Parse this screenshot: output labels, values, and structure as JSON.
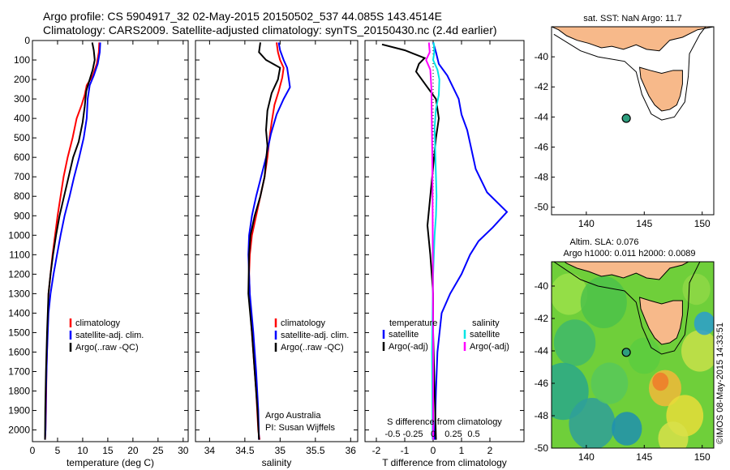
{
  "title": {
    "line1": "Argo profile: CS 5904917_32 02-May-2015 20150502_537 44.085S 143.4514E",
    "line2": "Climatology: CARS2009. Satellite-adjusted climatology: synTS_20150430.nc (2.4d earlier)"
  },
  "colors": {
    "climatology": "#ff0000",
    "satellite": "#0000ff",
    "argo": "#000000",
    "temp_diff_sat": "#0000ff",
    "temp_diff_argo": "#000000",
    "sal_diff_sat": "#00e5e5",
    "sal_diff_argo": "#ff00ff",
    "land": "#f7b98a",
    "marker": "#2e9e7e"
  },
  "chart_data": [
    {
      "type": "line",
      "id": "temperature",
      "xlabel": "temperature (deg C)",
      "ylabel": "",
      "xlim": [
        0,
        31
      ],
      "ylim": [
        2060,
        0
      ],
      "xticks": [
        0,
        5,
        10,
        15,
        20,
        25,
        30
      ],
      "yticks": [
        0,
        100,
        200,
        300,
        400,
        500,
        600,
        700,
        800,
        900,
        1000,
        1100,
        1200,
        1300,
        1400,
        1500,
        1600,
        1700,
        1800,
        1900,
        2000
      ],
      "legend": {
        "position": "lower-right",
        "entries": [
          "climatology",
          "satellite-adj. clim.",
          "Argo(..raw -QC)"
        ]
      },
      "series": [
        {
          "name": "climatology",
          "color_key": "climatology",
          "x": [
            13.3,
            13.2,
            12.8,
            12.0,
            10.8,
            10.4,
            9.8,
            8.8,
            8.0,
            7.0,
            6.2,
            5.6,
            5.0,
            4.5,
            4.0,
            3.6,
            3.2,
            3.0,
            2.8,
            2.7,
            2.6,
            2.5
          ],
          "y": [
            10,
            60,
            120,
            180,
            230,
            280,
            330,
            400,
            500,
            600,
            700,
            800,
            900,
            1000,
            1100,
            1200,
            1300,
            1500,
            1700,
            1900,
            2000,
            2050
          ]
        },
        {
          "name": "satellite-adj. clim.",
          "color_key": "satellite",
          "x": [
            13.5,
            13.4,
            13.0,
            12.2,
            11.4,
            11.0,
            10.8,
            10.2,
            9.3,
            8.3,
            7.4,
            6.4,
            5.6,
            4.9,
            4.2,
            3.6,
            3.2,
            2.9,
            2.7,
            2.6,
            2.5
          ],
          "y": [
            10,
            60,
            120,
            180,
            230,
            300,
            400,
            500,
            600,
            700,
            800,
            900,
            1000,
            1100,
            1200,
            1300,
            1400,
            1600,
            1800,
            2000,
            2050
          ]
        },
        {
          "name": "Argo(..raw -QC)",
          "color_key": "argo",
          "x": [
            11.9,
            12.2,
            12.4,
            12.0,
            11.4,
            10.7,
            10.4,
            10.0,
            9.2,
            8.1,
            7.2,
            6.3,
            5.4,
            4.7,
            4.1,
            3.6,
            3.2,
            2.9,
            2.7,
            2.55,
            2.5
          ],
          "y": [
            10,
            50,
            100,
            150,
            200,
            260,
            340,
            420,
            520,
            600,
            700,
            800,
            900,
            1000,
            1100,
            1200,
            1300,
            1500,
            1700,
            1900,
            2050
          ]
        }
      ]
    },
    {
      "type": "line",
      "id": "salinity",
      "xlabel": "salinity",
      "ylabel": "",
      "xlim": [
        33.8,
        36.1
      ],
      "ylim": [
        2060,
        0
      ],
      "xticks": [
        34,
        34.5,
        35,
        35.5,
        36
      ],
      "xticklabels": [
        "34",
        "34.5",
        "35",
        "35.5",
        "36"
      ],
      "legend": {
        "position": "lower-right",
        "entries": [
          "climatology",
          "satellite-adj. clim.",
          "Argo(..raw -QC)"
        ]
      },
      "series": [
        {
          "name": "climatology",
          "color_key": "climatology",
          "x": [
            34.95,
            34.97,
            35.0,
            35.05,
            35.03,
            34.98,
            34.92,
            34.88,
            34.85,
            34.82,
            34.78,
            34.72,
            34.66,
            34.6,
            34.57,
            34.56,
            34.58,
            34.62,
            34.66,
            34.69,
            34.71
          ],
          "y": [
            10,
            60,
            100,
            140,
            190,
            260,
            330,
            420,
            500,
            600,
            700,
            800,
            900,
            1000,
            1100,
            1200,
            1400,
            1600,
            1800,
            2000,
            2050
          ]
        },
        {
          "name": "satellite-adj. clim.",
          "color_key": "satellite",
          "x": [
            34.98,
            35.0,
            35.05,
            35.1,
            35.12,
            35.14,
            35.05,
            34.95,
            34.87,
            34.8,
            34.73,
            34.66,
            34.6,
            34.56,
            34.55,
            34.57,
            34.62,
            34.66,
            34.69,
            34.7
          ],
          "y": [
            10,
            50,
            100,
            140,
            190,
            240,
            300,
            380,
            480,
            600,
            700,
            800,
            900,
            1000,
            1100,
            1300,
            1500,
            1700,
            1900,
            2050
          ]
        },
        {
          "name": "Argo(..raw -QC)",
          "color_key": "argo",
          "x": [
            34.72,
            34.7,
            34.8,
            35.0,
            34.97,
            34.88,
            34.82,
            34.8,
            34.82,
            34.8,
            34.78,
            34.72,
            34.64,
            34.58,
            34.56,
            34.55,
            34.6,
            34.64,
            34.68,
            34.7
          ],
          "y": [
            10,
            60,
            100,
            140,
            200,
            270,
            360,
            460,
            540,
            620,
            700,
            800,
            900,
            1000,
            1100,
            1300,
            1500,
            1700,
            1900,
            2050
          ]
        }
      ]
    },
    {
      "type": "line",
      "id": "difference",
      "xlabel": "T difference from climatology",
      "top_label": "S difference from climatology",
      "xlim": [
        -2.4,
        3.2
      ],
      "ylim": [
        2060,
        0
      ],
      "xticks": [
        -2,
        -1,
        0,
        1,
        2
      ],
      "top_ticks": [
        -0.5,
        -0.25,
        0,
        0.25,
        0.5
      ],
      "top_ticklabels": [
        "-0.5",
        "-0.25",
        "0",
        "0.25",
        "0.5"
      ],
      "legend": {
        "position": "lower-center",
        "headers": [
          "temperature",
          "salinity"
        ],
        "entries": [
          "satellite",
          "Argo(-adj)",
          "satellite",
          "Argo(-adj)"
        ]
      },
      "series": [
        {
          "name": "satellite",
          "group": "temperature",
          "color_key": "temp_diff_sat",
          "x": [
            0.0,
            0.1,
            0.2,
            0.5,
            0.7,
            0.9,
            1.0,
            1.2,
            1.35,
            1.5,
            1.9,
            2.6,
            2.1,
            1.6,
            1.3,
            1.0,
            0.6,
            0.3,
            0.15,
            0.1,
            0.05
          ],
          "y": [
            10,
            60,
            120,
            180,
            240,
            300,
            380,
            460,
            560,
            660,
            780,
            880,
            960,
            1030,
            1100,
            1200,
            1300,
            1400,
            1600,
            1800,
            2050
          ]
        },
        {
          "name": "Argo(-adj)",
          "group": "temperature",
          "color_key": "temp_diff_argo",
          "x": [
            -1.8,
            -1.0,
            -0.3,
            -0.5,
            -0.6,
            -0.3,
            0.1,
            0.2,
            0.1,
            0.0,
            -0.1,
            -0.2,
            -0.1,
            0.0,
            0.0,
            0.05,
            0.1
          ],
          "y": [
            20,
            50,
            90,
            120,
            160,
            220,
            300,
            400,
            500,
            650,
            800,
            950,
            1100,
            1300,
            1500,
            1800,
            2050
          ]
        },
        {
          "name": "satellite",
          "group": "salinity",
          "color_key": "sal_diff_sat",
          "x": [
            0.02,
            0.04,
            0.0,
            0.15,
            0.22,
            0.2,
            0.1,
            0.05,
            0.08,
            0.12,
            0.1,
            0.05,
            0.0,
            -0.02,
            -0.04,
            -0.03,
            -0.02
          ],
          "y": [
            10,
            60,
            100,
            150,
            200,
            280,
            350,
            450,
            600,
            800,
            900,
            1000,
            1200,
            1400,
            1600,
            1800,
            2050
          ]
        },
        {
          "name": "Argo(-adj)",
          "group": "salinity",
          "color_key": "sal_diff_argo",
          "x": [
            -0.15,
            -0.12,
            -0.25,
            -0.1,
            -0.06,
            -0.05,
            -0.03,
            -0.02,
            -0.01,
            0.0,
            0.0
          ],
          "y": [
            10,
            60,
            100,
            150,
            250,
            400,
            600,
            800,
            1100,
            1500,
            2050
          ]
        }
      ]
    },
    {
      "type": "map",
      "id": "sst-map",
      "title": "sat. SST: NaN Argo: 11.7",
      "xlim": [
        137,
        151
      ],
      "ylim": [
        -50.5,
        -38
      ],
      "xticks": [
        140,
        145,
        150
      ],
      "yticks": [
        -40,
        -42,
        -44,
        -46,
        -48,
        -50
      ],
      "marker": {
        "lon": 143.45,
        "lat": -44.09
      }
    },
    {
      "type": "heatmap",
      "id": "sla-map",
      "title_line1": "Altim. SLA: 0.076",
      "title_line2": "Argo h1000: 0.011 h2000: 0.0089",
      "xlim": [
        137,
        151
      ],
      "ylim": [
        -50,
        -38.5
      ],
      "xticks": [
        140,
        145,
        150
      ],
      "yticks": [
        -40,
        -42,
        -44,
        -46,
        -48,
        -50
      ],
      "marker": {
        "lon": 143.45,
        "lat": -44.09
      },
      "side_label": "©IMOS 08-May-2015 14:33:51"
    }
  ]
}
